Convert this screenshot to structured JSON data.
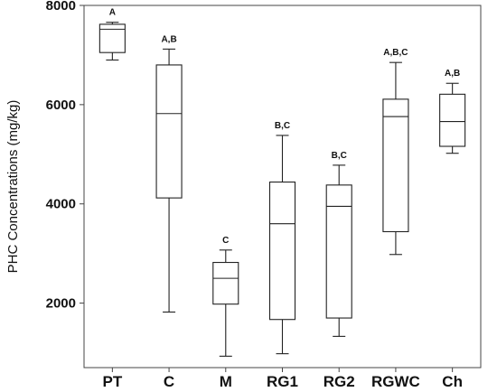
{
  "chart_data": {
    "type": "boxplot",
    "ylabel": "PHC Concentrations (mg/kg)",
    "ylim": [
      700,
      8000
    ],
    "yticks": [
      2000,
      4000,
      6000,
      8000
    ],
    "grid": false,
    "categories": [
      "PT",
      "C",
      "M",
      "RG1",
      "RG2",
      "RGWC",
      "Ch"
    ],
    "boxes": [
      {
        "category": "PT",
        "min": 6900,
        "q1": 7050,
        "median": 7520,
        "q3": 7620,
        "max": 7660,
        "group_label": "A"
      },
      {
        "category": "C",
        "min": 1820,
        "q1": 4120,
        "median": 5820,
        "q3": 6800,
        "max": 7120,
        "group_label": "A,B"
      },
      {
        "category": "M",
        "min": 930,
        "q1": 1980,
        "median": 2500,
        "q3": 2820,
        "max": 3070,
        "group_label": "C"
      },
      {
        "category": "RG1",
        "min": 980,
        "q1": 1670,
        "median": 3600,
        "q3": 4440,
        "max": 5380,
        "group_label": "B,C"
      },
      {
        "category": "RG2",
        "min": 1330,
        "q1": 1700,
        "median": 3950,
        "q3": 4380,
        "max": 4780,
        "group_label": "B,C"
      },
      {
        "category": "RGWC",
        "min": 2980,
        "q1": 3440,
        "median": 5760,
        "q3": 6110,
        "max": 6850,
        "group_label": "A,B,C"
      },
      {
        "category": "Ch",
        "min": 5020,
        "q1": 5160,
        "median": 5660,
        "q3": 6210,
        "max": 6430,
        "group_label": "A,B"
      }
    ]
  }
}
